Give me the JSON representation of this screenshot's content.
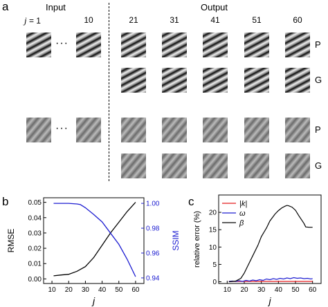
{
  "panel_a": {
    "letter": "a",
    "input_header": "Input",
    "output_header": "Output",
    "input_j_prefix": "j",
    "input_j_eq": " = 1",
    "input_labels": [
      "10"
    ],
    "output_labels": [
      "21",
      "31",
      "41",
      "51",
      "60"
    ],
    "dots": "···",
    "rows": [
      {
        "label": "P",
        "pattern": "strong-stripes"
      },
      {
        "label": "G",
        "pattern": "strong-stripes"
      },
      {
        "label": "P",
        "pattern": "faint-stripes"
      },
      {
        "label": "G",
        "pattern": "faint-stripes"
      }
    ]
  },
  "panel_b": {
    "letter": "b"
  },
  "panel_c": {
    "letter": "c"
  },
  "chart_data": [
    {
      "type": "line",
      "panel": "b",
      "xlabel": "j",
      "xlim": [
        5,
        65
      ],
      "xticks": [
        10,
        20,
        30,
        40,
        50,
        60
      ],
      "series": [
        {
          "name": "RMSE",
          "axis": "left",
          "color": "#000000",
          "x": [
            11,
            15,
            20,
            25,
            30,
            35,
            40,
            45,
            50,
            55,
            60
          ],
          "y": [
            0.002,
            0.0025,
            0.003,
            0.005,
            0.008,
            0.014,
            0.022,
            0.03,
            0.037,
            0.044,
            0.05
          ]
        },
        {
          "name": "SSIM",
          "axis": "right",
          "color": "#1c1cd1",
          "x": [
            11,
            15,
            20,
            25,
            27,
            30,
            35,
            40,
            45,
            50,
            55,
            60
          ],
          "y": [
            1.0,
            1.0,
            1.0,
            0.9995,
            0.999,
            0.9965,
            0.991,
            0.985,
            0.976,
            0.967,
            0.955,
            0.941
          ]
        }
      ],
      "left_axis": {
        "label": "RMSE",
        "ylim": [
          -0.003,
          0.053
        ],
        "ticks": [
          "0.00",
          "0.01",
          "0.02",
          "0.03",
          "0.04",
          "0.05"
        ]
      },
      "right_axis": {
        "label": "SSIM",
        "ylim": [
          0.9355,
          1.0045
        ],
        "ticks": [
          "0.94",
          "0.96",
          "0.98",
          "1.00"
        ]
      },
      "grid": false
    },
    {
      "type": "line",
      "panel": "c",
      "xlabel": "j",
      "ylabel": "relative error (%)",
      "xlim": [
        5,
        65
      ],
      "ylim": [
        -0.5,
        25
      ],
      "xticks": [
        10,
        20,
        30,
        40,
        50,
        60
      ],
      "yticks": [
        0,
        5,
        10,
        15,
        20
      ],
      "legend": {
        "placement": "top-left",
        "entries": [
          {
            "text": "|k|",
            "color": "#e41a1c"
          },
          {
            "text": "ω",
            "color": "#1c1cd1"
          },
          {
            "text": "β",
            "color": "#000000"
          }
        ]
      },
      "series": [
        {
          "name": "|k|",
          "color": "#e41a1c",
          "x": [
            11,
            15,
            20,
            25,
            30,
            35,
            40,
            45,
            50,
            55,
            60
          ],
          "y": [
            0.1,
            0.1,
            0.1,
            0.1,
            0.1,
            0.1,
            0.1,
            0.1,
            0.1,
            0.1,
            0.1
          ]
        },
        {
          "name": "ω",
          "color": "#1c1cd1",
          "x": [
            11,
            13,
            15,
            17,
            19,
            21,
            23,
            25,
            27,
            29,
            31,
            33,
            35,
            37,
            39,
            41,
            43,
            45,
            47,
            49,
            51,
            53,
            55,
            57,
            59,
            60
          ],
          "y": [
            0.1,
            0.2,
            0.1,
            0.3,
            0.1,
            0.4,
            0.2,
            0.5,
            0.3,
            0.6,
            0.4,
            0.8,
            0.6,
            0.9,
            0.7,
            1.0,
            0.8,
            1.1,
            0.9,
            1.2,
            1.0,
            1.1,
            0.9,
            1.0,
            0.8,
            0.9
          ]
        },
        {
          "name": "β",
          "color": "#000000",
          "x": [
            11,
            15,
            18,
            20,
            22,
            25,
            28,
            30,
            33,
            35,
            38,
            40,
            42,
            44,
            45,
            46,
            48,
            50,
            52,
            54,
            55,
            56,
            58,
            60
          ],
          "y": [
            0.0,
            0.2,
            1.0,
            2.5,
            4.5,
            7.5,
            10.5,
            13.0,
            15.5,
            17.5,
            19.5,
            20.5,
            21.3,
            21.8,
            22.0,
            21.9,
            21.5,
            20.6,
            19.0,
            17.5,
            16.8,
            15.8,
            15.7,
            15.7
          ]
        }
      ],
      "grid": false
    }
  ]
}
